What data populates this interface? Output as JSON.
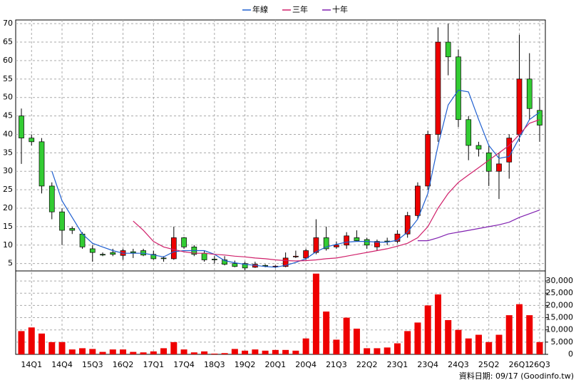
{
  "chart_data": {
    "type": "candlestick",
    "legend": "top",
    "grid": true,
    "categories": [
      null,
      "14Q1",
      null,
      null,
      "14Q4",
      null,
      null,
      "15Q3",
      null,
      null,
      "16Q2",
      null,
      null,
      "17Q1",
      null,
      null,
      "17Q4",
      null,
      null,
      "18Q3",
      null,
      null,
      "19Q2",
      null,
      null,
      "20Q1",
      null,
      null,
      "20Q4",
      null,
      null,
      "21Q3",
      null,
      null,
      "22Q2",
      null,
      null,
      "23Q1",
      null,
      null,
      "23Q4",
      null,
      null,
      "24Q3",
      null,
      null,
      "25Q2",
      null,
      null,
      "26Q1",
      null,
      "26Q3"
    ],
    "open": [
      45,
      39,
      38,
      26,
      19,
      14.5,
      13,
      9,
      7.5,
      8,
      7.2,
      8.2,
      8.5,
      7.5,
      6.5,
      6.3,
      12,
      9.5,
      7.8,
      6.2,
      6,
      5,
      5,
      4,
      4.5,
      4.2,
      4.2,
      6.8,
      6.5,
      8,
      12,
      9.5,
      10,
      12,
      11.5,
      9.5,
      11.1,
      11,
      13,
      18,
      26,
      40,
      65,
      61,
      44,
      37,
      35,
      30,
      32.5,
      40,
      55,
      46.5
    ],
    "high": [
      47,
      40,
      39,
      27,
      20,
      15,
      13.5,
      10,
      8,
      9,
      9,
      9,
      9,
      8.5,
      7,
      15,
      12.2,
      10,
      8.5,
      7,
      7,
      5.8,
      5.5,
      5.5,
      4.8,
      4.5,
      8,
      8.5,
      9,
      17,
      15,
      11,
      13.5,
      14,
      12,
      11.5,
      12,
      14,
      19,
      27,
      41,
      69,
      70,
      63,
      45,
      38,
      37,
      35,
      40,
      67,
      62,
      50
    ],
    "low": [
      32,
      37,
      24,
      17,
      10,
      13,
      9,
      5.5,
      7,
      7,
      6,
      6.5,
      7,
      6,
      5.5,
      6,
      9,
      7,
      5.5,
      5,
      4.5,
      4,
      3.2,
      3.8,
      4,
      3.8,
      4,
      6.5,
      6,
      7.5,
      8.5,
      9,
      9,
      11,
      9,
      8.5,
      10,
      10.5,
      12,
      17,
      25,
      38,
      56,
      42,
      33,
      34,
      26,
      22.5,
      28,
      38,
      44,
      38
    ],
    "close": [
      39,
      38,
      26,
      19,
      14,
      14,
      9.5,
      8,
      7.3,
      7.5,
      8.5,
      7.9,
      7.3,
      6.3,
      6.4,
      12,
      9.5,
      7.5,
      6,
      6,
      4.8,
      4.2,
      3.8,
      4.8,
      4.3,
      4.3,
      6.5,
      7,
      8.5,
      12,
      9,
      10,
      12.5,
      11.2,
      10,
      11,
      10.9,
      13,
      18,
      26,
      40,
      65,
      61,
      44,
      37,
      36,
      30,
      32,
      39,
      55,
      47,
      42.5
    ],
    "up_color": "#ee0000",
    "down_color": "#33cc33",
    "ylim": [
      3,
      71
    ],
    "yticks": [
      5,
      10,
      15,
      20,
      25,
      30,
      35,
      40,
      45,
      50,
      55,
      60,
      65,
      70
    ],
    "series": [
      {
        "name": "年線",
        "color": "#1f5fd0",
        "values": [
          null,
          null,
          null,
          30,
          22,
          17.5,
          13,
          10.5,
          9.5,
          8.5,
          7.8,
          7.8,
          7.8,
          7.3,
          6.8,
          8.2,
          8.5,
          8.5,
          8.5,
          7.5,
          5.8,
          5.2,
          4.8,
          4.5,
          4.2,
          4.0,
          4.5,
          5.3,
          6.3,
          8.2,
          9.5,
          10.2,
          10.8,
          11,
          11,
          10.8,
          10.8,
          11.3,
          13.5,
          17,
          24,
          37,
          48,
          52,
          51.5,
          44,
          37,
          33.5,
          34,
          39,
          44,
          46
        ]
      },
      {
        "name": "三年",
        "color": "#d0206a",
        "values": [
          null,
          null,
          null,
          null,
          null,
          null,
          null,
          null,
          null,
          null,
          null,
          16.5,
          14,
          11,
          9.5,
          8.8,
          8.2,
          7.8,
          7.8,
          7.5,
          7.3,
          7.0,
          6.8,
          6.5,
          6.3,
          6.0,
          5.8,
          5.7,
          5.8,
          6.0,
          6.3,
          6.5,
          7.0,
          7.5,
          8.0,
          8.5,
          9.0,
          9.7,
          10.5,
          12,
          15,
          20,
          24,
          27,
          29,
          31,
          33,
          35,
          37,
          40,
          43,
          44
        ]
      },
      {
        "name": "十年",
        "color": "#8020b0",
        "values": [
          null,
          null,
          null,
          null,
          null,
          null,
          null,
          null,
          null,
          null,
          null,
          null,
          null,
          null,
          null,
          null,
          null,
          null,
          null,
          null,
          null,
          null,
          null,
          null,
          null,
          null,
          null,
          null,
          null,
          null,
          null,
          null,
          null,
          null,
          null,
          null,
          null,
          null,
          null,
          11.2,
          11.2,
          12,
          13,
          13.5,
          14,
          14.5,
          15,
          15.5,
          16.2,
          17.5,
          18.5,
          19.5
        ]
      }
    ],
    "volume": {
      "color": "#ee0000",
      "values": [
        9500,
        11000,
        8500,
        5000,
        5000,
        2000,
        2500,
        2200,
        1000,
        2000,
        2000,
        1000,
        800,
        1200,
        2500,
        5000,
        2000,
        800,
        1200,
        300,
        500,
        2200,
        1500,
        2000,
        1500,
        1800,
        1800,
        1500,
        6500,
        33000,
        17500,
        6000,
        15000,
        10500,
        2500,
        2500,
        2800,
        4500,
        9500,
        13000,
        20000,
        24500,
        14000,
        10000,
        6500,
        8000,
        5000,
        8000,
        16000,
        20500,
        16000,
        5000
      ],
      "ylim": [
        0,
        34100
      ],
      "yticks": [
        0,
        {
          "value": 5000,
          "label": "5,000"
        },
        {
          "value": 10000,
          "label": "10,000"
        },
        {
          "value": 15000,
          "label": "15,000"
        },
        {
          "value": 20000,
          "label": "20,000"
        },
        {
          "value": 25000,
          "label": "25,000"
        },
        {
          "value": 30000,
          "label": "30,000"
        }
      ]
    },
    "footer": "資料日期: 09/17 (Goodinfo.tw)"
  }
}
